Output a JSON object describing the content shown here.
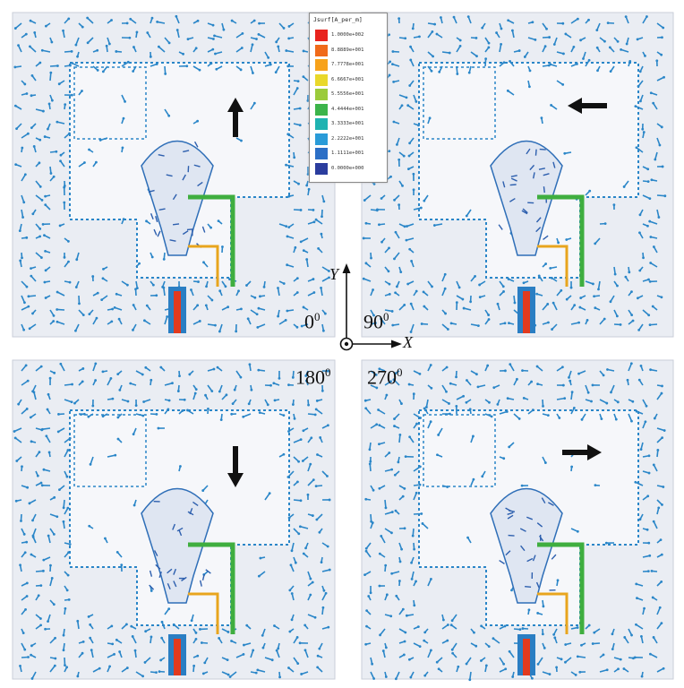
{
  "legend": {
    "title": "Jsurf[A_per_m]",
    "entries": [
      {
        "label": "1.0000e+002",
        "color": "#e8231e"
      },
      {
        "label": "8.8889e+001",
        "color": "#f06a1a"
      },
      {
        "label": "7.7778e+001",
        "color": "#f7a21b"
      },
      {
        "label": "6.6667e+001",
        "color": "#e9d82a"
      },
      {
        "label": "5.5556e+001",
        "color": "#9bcb3b"
      },
      {
        "label": "4.4444e+001",
        "color": "#3cb44a"
      },
      {
        "label": "3.3333e+001",
        "color": "#1fb3b1"
      },
      {
        "label": "2.2222e+001",
        "color": "#2a9bd8"
      },
      {
        "label": "1.1111e+001",
        "color": "#2c6fc6"
      },
      {
        "label": "0.0000e+000",
        "color": "#2b3d9e"
      }
    ]
  },
  "panels": [
    {
      "phase": "0",
      "unit": "0",
      "arrow_direction": "up"
    },
    {
      "phase": "90",
      "unit": "0",
      "arrow_direction": "left"
    },
    {
      "phase": "180",
      "unit": "0",
      "arrow_direction": "down"
    },
    {
      "phase": "270",
      "unit": "0",
      "arrow_direction": "right"
    }
  ],
  "axes": {
    "y_label": "Y",
    "x_label": "X"
  },
  "colors": {
    "background_fill": "#eaedf3",
    "vector": "#2a86c8",
    "feed_hot": "#e23a1e",
    "feed_mid": "#3fae3f"
  }
}
